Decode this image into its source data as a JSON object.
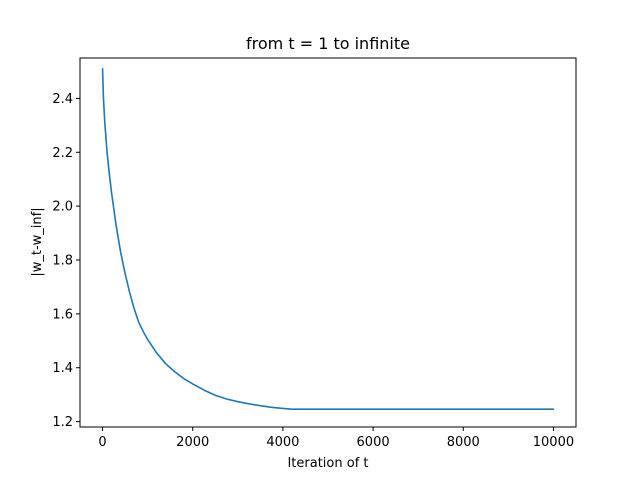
{
  "chart_data": {
    "type": "line",
    "title": "from t = 1 to infinite",
    "xlabel": "Iteration of t",
    "ylabel": "|w_t-w_inf|",
    "xlim": [
      -500,
      10500
    ],
    "ylim": [
      1.18,
      2.55
    ],
    "xticks": [
      0,
      2000,
      4000,
      6000,
      8000,
      10000
    ],
    "xtick_labels": [
      "0",
      "2000",
      "4000",
      "6000",
      "8000",
      "10000"
    ],
    "yticks": [
      1.2,
      1.4,
      1.6,
      1.8,
      2.0,
      2.2,
      2.4
    ],
    "ytick_labels": [
      "1.2",
      "1.4",
      "1.6",
      "1.8",
      "2.0",
      "2.2",
      "2.4"
    ],
    "grid": false,
    "series": [
      {
        "color": "#1f77b4",
        "x": [
          1,
          20,
          50,
          100,
          150,
          200,
          300,
          400,
          500,
          600,
          700,
          800,
          900,
          1000,
          1200,
          1400,
          1600,
          1800,
          2000,
          2250,
          2500,
          2750,
          3000,
          3250,
          3500,
          3750,
          4000,
          4200,
          4300,
          5000,
          6000,
          7000,
          8000,
          9000,
          10000
        ],
        "y": [
          2.51,
          2.4,
          2.31,
          2.2,
          2.12,
          2.05,
          1.93,
          1.83,
          1.75,
          1.68,
          1.62,
          1.57,
          1.535,
          1.505,
          1.455,
          1.415,
          1.385,
          1.36,
          1.34,
          1.317,
          1.298,
          1.284,
          1.274,
          1.266,
          1.259,
          1.253,
          1.249,
          1.246,
          1.246,
          1.246,
          1.246,
          1.246,
          1.246,
          1.246,
          1.246
        ]
      }
    ]
  }
}
